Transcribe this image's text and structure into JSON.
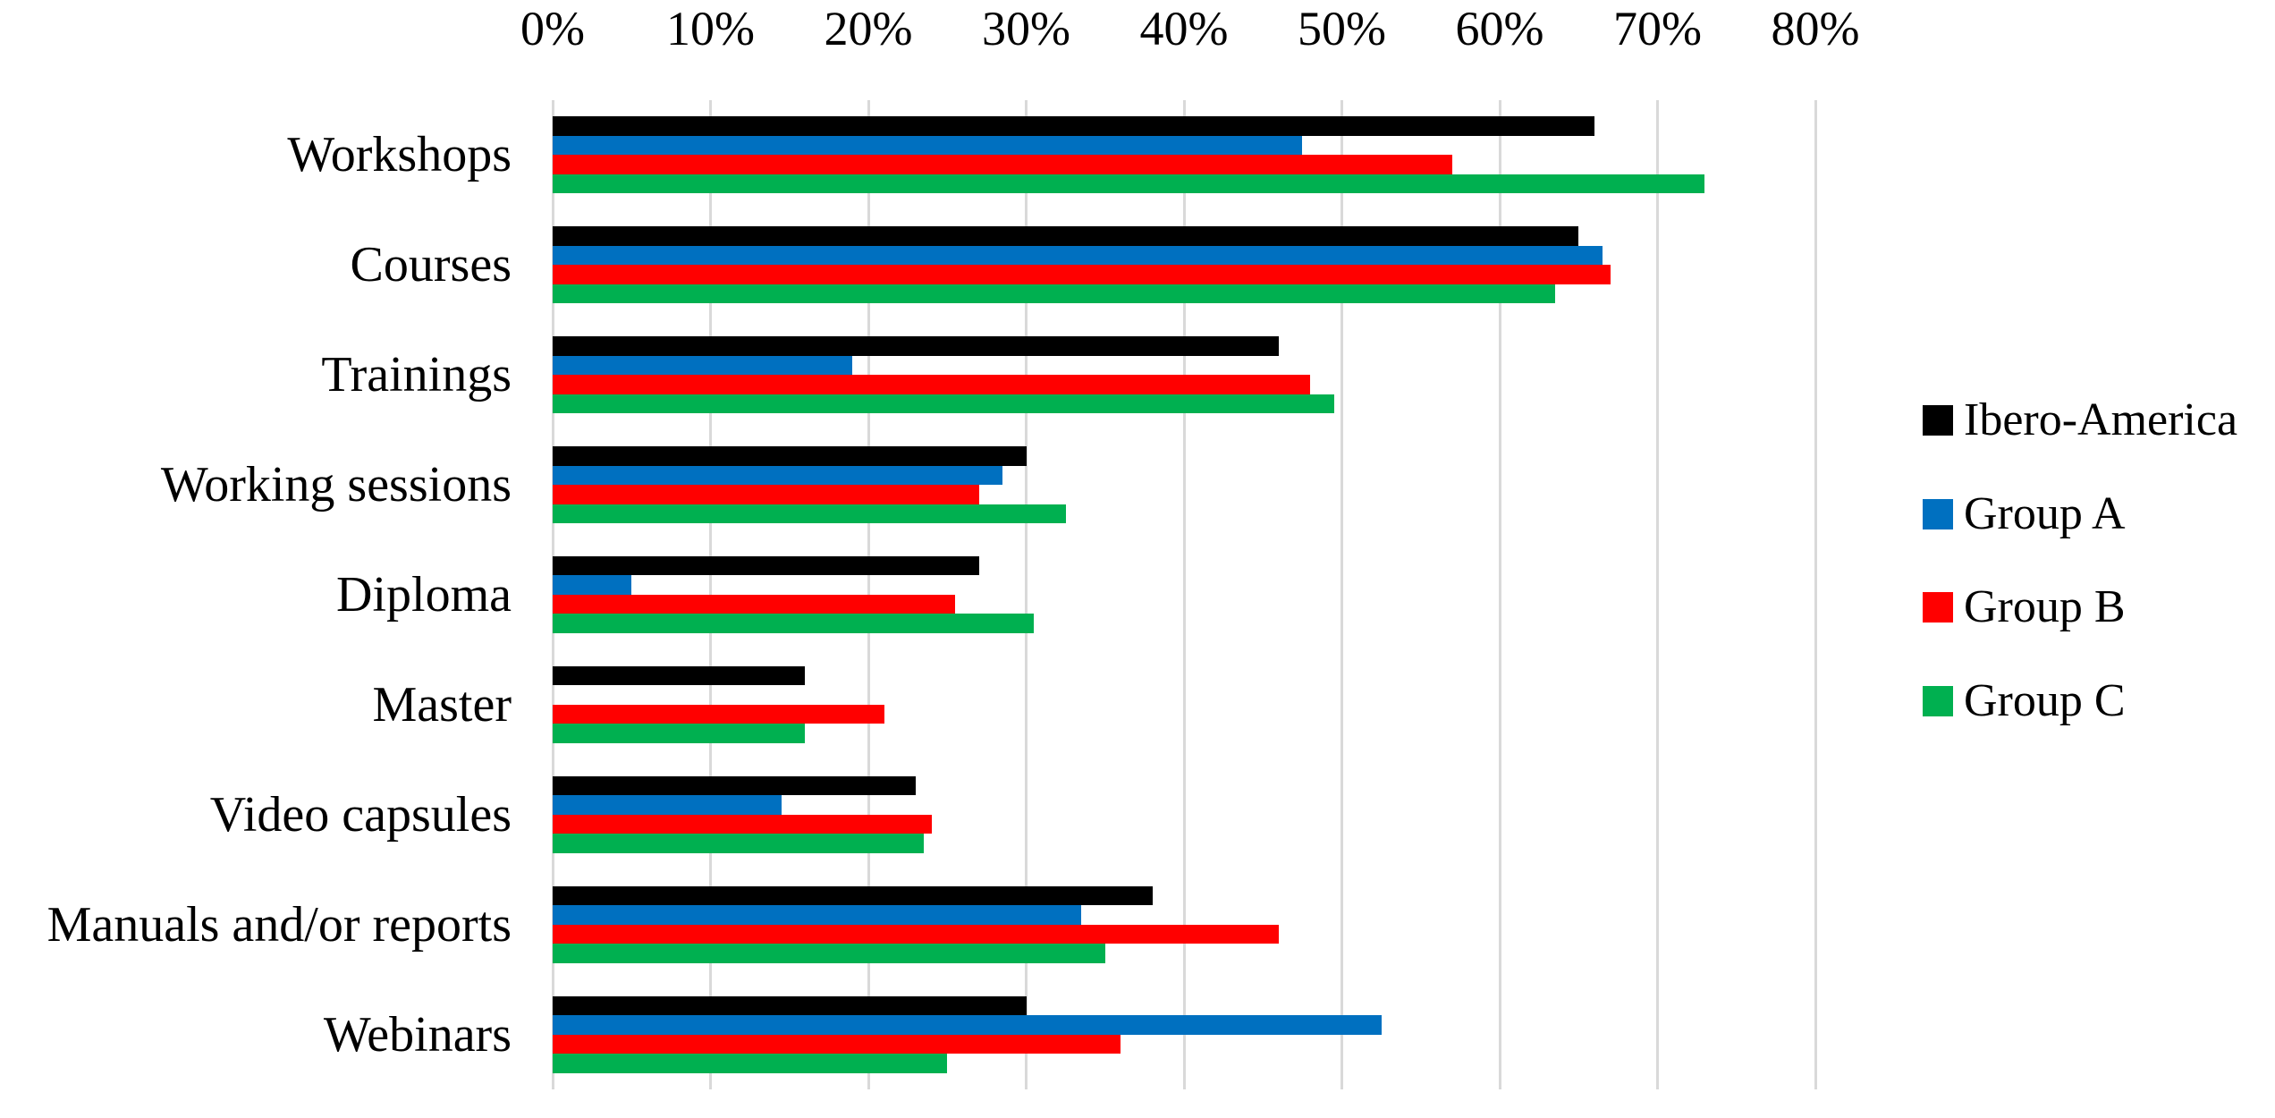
{
  "chart_data": {
    "type": "bar",
    "orientation": "horizontal",
    "title": "",
    "x_axis": {
      "position": "top",
      "min": 0,
      "max": 80,
      "tick_step": 10,
      "tick_labels": [
        "0%",
        "10%",
        "20%",
        "30%",
        "40%",
        "50%",
        "60%",
        "70%",
        "80%"
      ]
    },
    "categories": [
      "Workshops",
      "Courses",
      "Trainings",
      "Working sessions",
      "Diploma",
      "Master",
      "Video capsules",
      "Manuals and/or reports",
      "Webinars"
    ],
    "series": [
      {
        "name": "Ibero-America",
        "color": "#000000",
        "values": [
          66,
          65,
          46,
          30,
          27,
          16,
          23,
          38,
          30
        ]
      },
      {
        "name": "Group A",
        "color": "#0070C0",
        "values": [
          47.5,
          66.5,
          19,
          28.5,
          5,
          0,
          14.5,
          33.5,
          52.5
        ]
      },
      {
        "name": "Group B",
        "color": "#FF0000",
        "values": [
          57,
          67,
          48,
          27,
          25.5,
          21,
          24,
          46,
          36
        ]
      },
      {
        "name": "Group C",
        "color": "#00B050",
        "values": [
          73,
          63.5,
          49.5,
          32.5,
          30.5,
          16,
          23.5,
          35,
          25
        ]
      }
    ],
    "legend": {
      "position": "right"
    },
    "grid": {
      "vertical": true,
      "horizontal": false,
      "color": "#D9D9D9"
    }
  }
}
